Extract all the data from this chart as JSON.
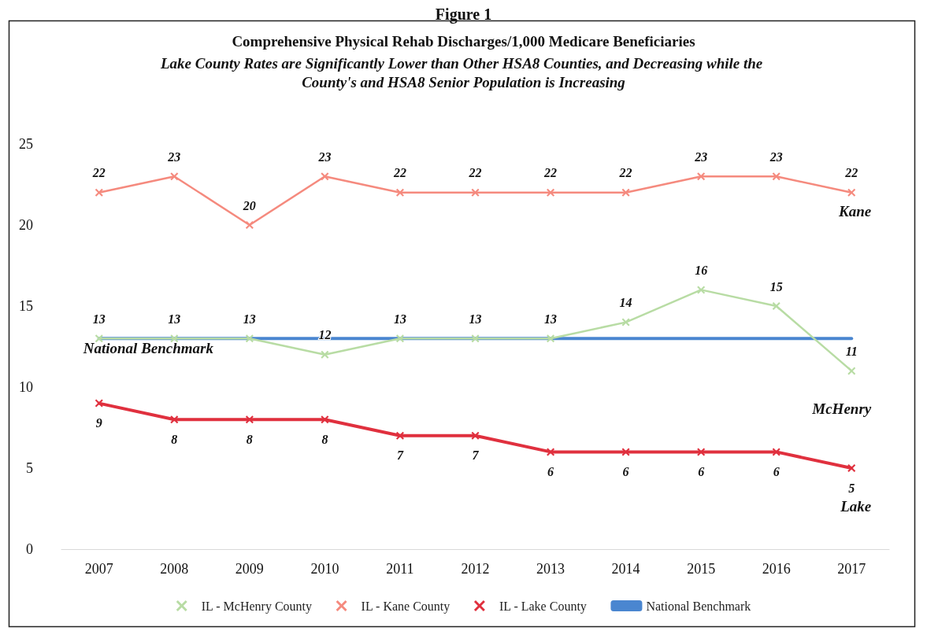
{
  "chart_data": {
    "type": "line",
    "title": "Comprehensive Physical Rehab Discharges/1,000 Medicare Beneficiaries",
    "subtitle": "Lake County Rates are Significantly Lower than Other HSA8 Counties, and Decreasing while the County's and HSA8 Senior Population is Increasing",
    "categories": [
      "2007",
      "2008",
      "2009",
      "2010",
      "2011",
      "2012",
      "2013",
      "2014",
      "2015",
      "2016",
      "2017"
    ],
    "series": [
      {
        "name": "IL - McHenry County",
        "color": "#b8dca4",
        "marker": "cross",
        "values": [
          13,
          13,
          13,
          12,
          13,
          13,
          13,
          14,
          16,
          15,
          11
        ],
        "value_labels": [
          "13",
          "13",
          "13",
          "12",
          "13",
          "13",
          "13",
          "14",
          "16",
          "15",
          "11"
        ]
      },
      {
        "name": "IL - Kane County",
        "color": "#f58a7e",
        "marker": "cross",
        "values": [
          22,
          23,
          20,
          23,
          22,
          22,
          22,
          22,
          23,
          23,
          22
        ],
        "value_labels": [
          "22",
          "23",
          "20",
          "23",
          "22",
          "22",
          "22",
          "22",
          "23",
          "23",
          "22"
        ]
      },
      {
        "name": "IL - Lake County",
        "color": "#e0303e",
        "marker": "cross",
        "values": [
          9,
          8,
          8,
          8,
          7,
          7,
          6,
          6,
          6,
          6,
          5
        ],
        "value_labels": [
          "9",
          "8",
          "8",
          "8",
          "7",
          "7",
          "6",
          "6",
          "6",
          "6",
          "5"
        ]
      },
      {
        "name": "National Benchmark",
        "color": "#4a86d0",
        "marker": "none",
        "values": [
          13,
          13,
          13,
          13,
          13,
          13,
          13,
          13,
          13,
          13,
          13
        ]
      }
    ],
    "ylim": [
      0,
      25
    ],
    "yticks": [
      0,
      5,
      10,
      15,
      20,
      25
    ],
    "grid": false,
    "legend": "bottom",
    "annotations": [
      {
        "text": "Kane",
        "x": "2017",
        "y": 22
      },
      {
        "text": "McHenry",
        "x": "2017",
        "y": 11
      },
      {
        "text": "Lake",
        "x": "2017",
        "y": 5
      },
      {
        "text": "National Benchmark",
        "x": "2007",
        "y": 13
      },
      "Figure 1"
    ]
  }
}
